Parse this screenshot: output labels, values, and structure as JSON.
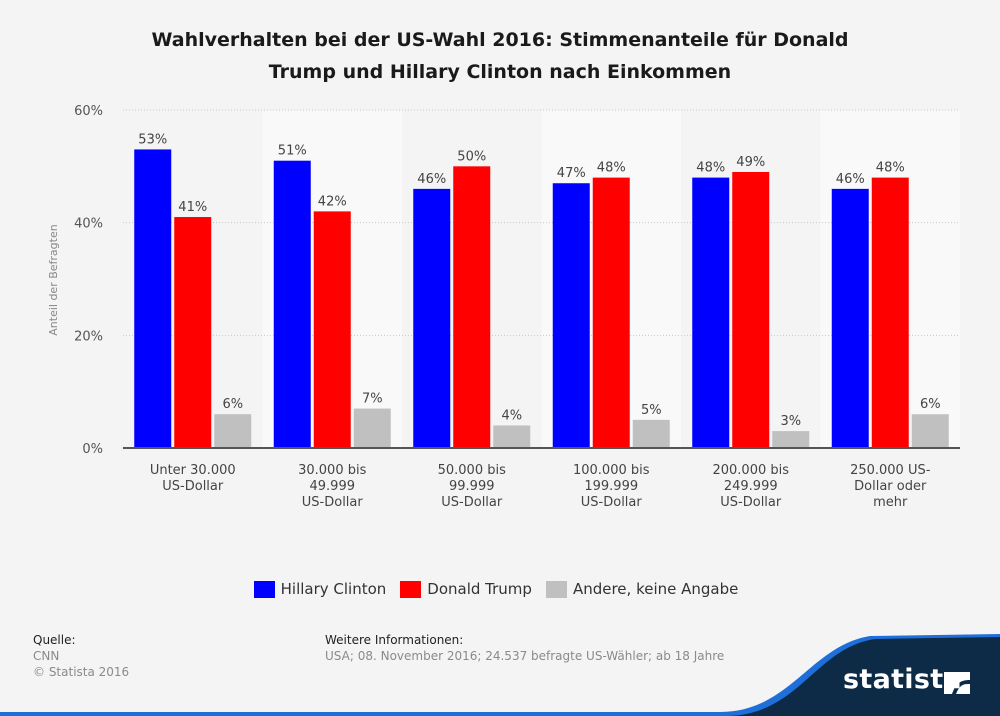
{
  "title_line1": "Wahlverhalten bei der US-Wahl 2016: Stimmenanteile für Donald",
  "title_line2": "Trump und Hillary Clinton nach Einkommen",
  "chart_data": {
    "type": "bar",
    "title": "Wahlverhalten bei der US-Wahl 2016: Stimmenanteile für Donald Trump und Hillary Clinton nach Einkommen",
    "xlabel": "",
    "ylabel": "Anteil der Befragten",
    "ylim": [
      0,
      60
    ],
    "yticks": [
      0,
      20,
      40,
      60
    ],
    "ytick_labels": [
      "0%",
      "20%",
      "40%",
      "60%"
    ],
    "grid": true,
    "legend_position": "bottom",
    "categories": [
      [
        "Unter 30.000",
        "US-Dollar"
      ],
      [
        "30.000 bis",
        "49.999",
        "US-Dollar"
      ],
      [
        "50.000 bis",
        "99.999",
        "US-Dollar"
      ],
      [
        "100.000 bis",
        "199.999",
        "US-Dollar"
      ],
      [
        "200.000 bis",
        "249.999",
        "US-Dollar"
      ],
      [
        "250.000 US-",
        "Dollar oder",
        "mehr"
      ]
    ],
    "series": [
      {
        "name": "Hillary Clinton",
        "color": "#0000ff",
        "values": [
          53,
          51,
          46,
          47,
          48,
          46
        ]
      },
      {
        "name": "Donald Trump",
        "color": "#ff0000",
        "values": [
          41,
          42,
          50,
          48,
          49,
          48
        ]
      },
      {
        "name": "Andere, keine Angabe",
        "color": "#c0c0c0",
        "values": [
          6,
          7,
          4,
          5,
          3,
          6
        ]
      }
    ],
    "value_suffix": "%"
  },
  "legend": [
    {
      "label": "Hillary Clinton",
      "color": "#0000ff"
    },
    {
      "label": "Donald Trump",
      "color": "#ff0000"
    },
    {
      "label": "Andere, keine Angabe",
      "color": "#c0c0c0"
    }
  ],
  "footer": {
    "source_heading": "Quelle:",
    "source": "CNN",
    "copyright": "© Statista 2016",
    "info_heading": "Weitere Informationen:",
    "info": "USA; 08. November 2016; 24.537 befragte US-Wähler; ab 18 Jahre"
  },
  "brand": {
    "name": "statista",
    "dark_color": "#0d2a47",
    "accent_color": "#1e6fd9"
  }
}
